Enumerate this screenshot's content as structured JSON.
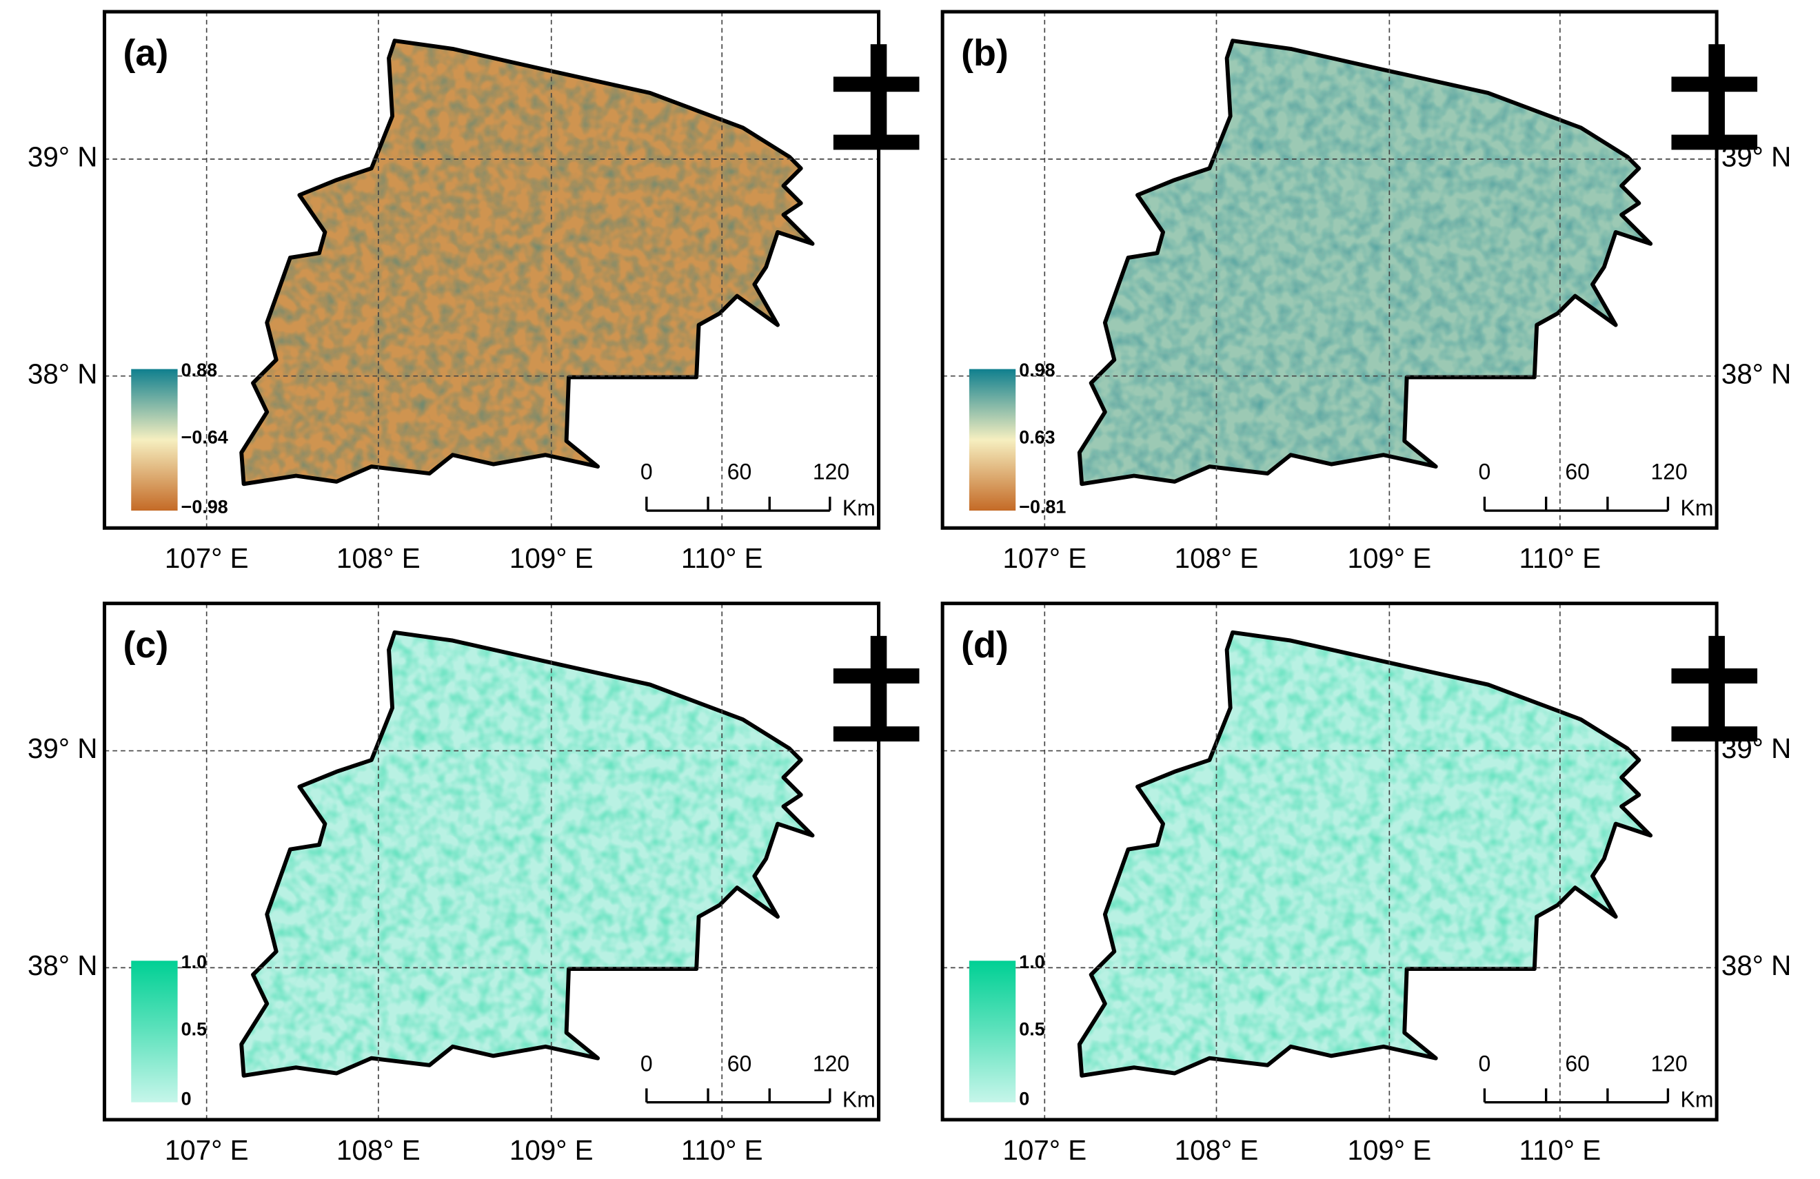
{
  "panels": [
    {
      "label": "(a)",
      "legend": [
        "0.88",
        "−0.64",
        "−0.98"
      ],
      "colors": [
        "#0f7f8e",
        "#f6efc0",
        "#c46a26"
      ],
      "fill": "#cf9450"
    },
    {
      "label": "(b)",
      "legend": [
        "0.98",
        "0.63",
        "−0.81"
      ],
      "colors": [
        "#0f7f8e",
        "#f6efc0",
        "#c46a26"
      ],
      "fill": "#9cc9b4"
    },
    {
      "label": "(c)",
      "legend": [
        "1.0",
        "0.5",
        "0"
      ],
      "colors": [
        "#00d094",
        "#5fe2bd",
        "#c6f6ea"
      ],
      "fill": "#b9f1e3"
    },
    {
      "label": "(d)",
      "legend": [
        "1.0",
        "0.5",
        "0"
      ],
      "colors": [
        "#00d094",
        "#5fe2bd",
        "#c6f6ea"
      ],
      "fill": "#b9f1e3"
    }
  ],
  "scale_bar": {
    "ticks": [
      "0",
      "60",
      "120"
    ],
    "unit": "Km"
  },
  "longitude_labels": [
    "107° E",
    "108° E",
    "109° E",
    "110° E"
  ],
  "latitude_labels": [
    "39° N",
    "38° N"
  ]
}
